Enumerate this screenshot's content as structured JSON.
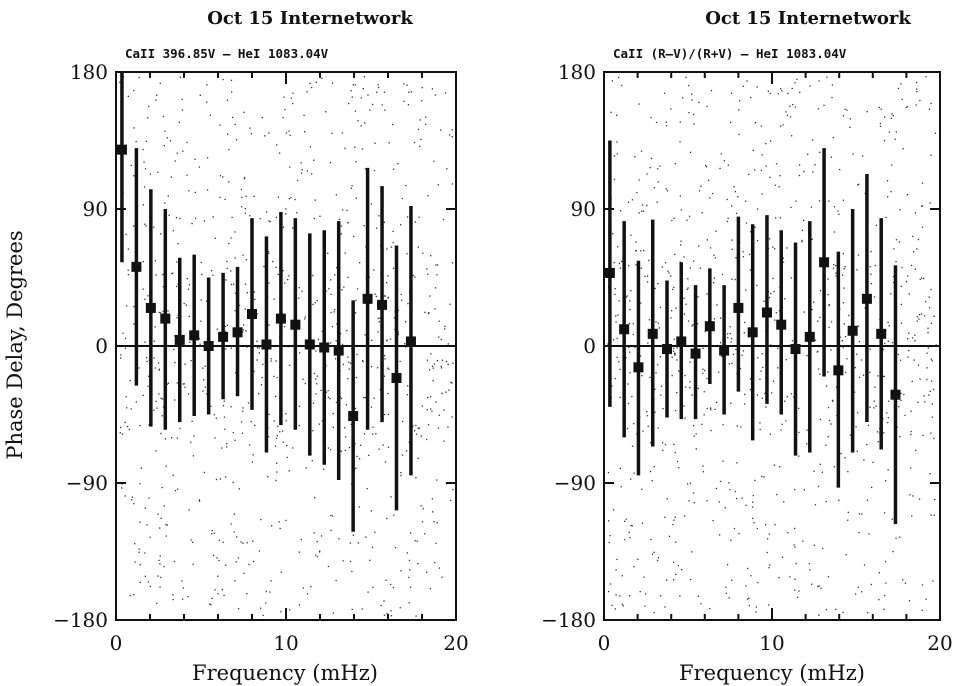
{
  "ylabel": "Phase Delay, Degrees",
  "colors": {
    "ink": "#111111",
    "scatter": "#333333",
    "background": "#ffffff"
  },
  "chart_data": [
    {
      "type": "scatter",
      "title": "Oct 15 Internetwork",
      "subtitle": "CaII 396.85V – HeI 1083.04V",
      "xlabel": "Frequency (mHz)",
      "ylabel": "Phase Delay, Degrees",
      "xlim": [
        0,
        20
      ],
      "ylim": [
        -180,
        180
      ],
      "xticks": [
        0,
        10,
        20
      ],
      "yticks": [
        180,
        90,
        0,
        -90,
        -180
      ],
      "xtick_labels": [
        "0",
        "10",
        "20"
      ],
      "ytick_labels": [
        "180",
        "90",
        "0",
        "−90",
        "−180"
      ],
      "zero_line": true,
      "points": [
        {
          "x": 0.35,
          "y": 129,
          "lo": 55,
          "hi": 180
        },
        {
          "x": 1.2,
          "y": 52,
          "lo": -26,
          "hi": 130
        },
        {
          "x": 2.05,
          "y": 25,
          "lo": -53,
          "hi": 103
        },
        {
          "x": 2.9,
          "y": 18,
          "lo": -55,
          "hi": 90
        },
        {
          "x": 3.75,
          "y": 4,
          "lo": -50,
          "hi": 58
        },
        {
          "x": 4.6,
          "y": 7,
          "lo": -46,
          "hi": 60
        },
        {
          "x": 5.45,
          "y": 0,
          "lo": -45,
          "hi": 45
        },
        {
          "x": 6.3,
          "y": 6,
          "lo": -35,
          "hi": 48
        },
        {
          "x": 7.15,
          "y": 9,
          "lo": -33,
          "hi": 52
        },
        {
          "x": 8.0,
          "y": 21,
          "lo": -42,
          "hi": 84
        },
        {
          "x": 8.85,
          "y": 1,
          "lo": -70,
          "hi": 72
        },
        {
          "x": 9.7,
          "y": 18,
          "lo": -52,
          "hi": 88
        },
        {
          "x": 10.55,
          "y": 14,
          "lo": -55,
          "hi": 84
        },
        {
          "x": 11.4,
          "y": 1,
          "lo": -72,
          "hi": 74
        },
        {
          "x": 12.25,
          "y": -1,
          "lo": -78,
          "hi": 76
        },
        {
          "x": 13.1,
          "y": -3,
          "lo": -88,
          "hi": 82
        },
        {
          "x": 13.95,
          "y": -46,
          "lo": -122,
          "hi": 30
        },
        {
          "x": 14.8,
          "y": 31,
          "lo": -55,
          "hi": 117
        },
        {
          "x": 15.65,
          "y": 27,
          "lo": -50,
          "hi": 105
        },
        {
          "x": 16.5,
          "y": -21,
          "lo": -108,
          "hi": 66
        },
        {
          "x": 17.35,
          "y": 3,
          "lo": -85,
          "hi": 92
        }
      ]
    },
    {
      "type": "scatter",
      "title": "Oct 15 Internetwork",
      "subtitle": "CaII (R–V)/(R+V) – HeI 1083.04V",
      "xlabel": "Frequency (mHz)",
      "ylabel": "",
      "xlim": [
        0,
        20
      ],
      "ylim": [
        -180,
        180
      ],
      "xticks": [
        0,
        10,
        20
      ],
      "yticks": [
        180,
        90,
        0,
        -90,
        -180
      ],
      "xtick_labels": [
        "0",
        "10",
        "20"
      ],
      "ytick_labels": [
        "180",
        "90",
        "0",
        "−90",
        "−180"
      ],
      "zero_line": true,
      "points": [
        {
          "x": 0.35,
          "y": 48,
          "lo": -40,
          "hi": 135
        },
        {
          "x": 1.2,
          "y": 11,
          "lo": -60,
          "hi": 82
        },
        {
          "x": 2.05,
          "y": -14,
          "lo": -85,
          "hi": 56
        },
        {
          "x": 2.9,
          "y": 8,
          "lo": -66,
          "hi": 83
        },
        {
          "x": 3.75,
          "y": -2,
          "lo": -47,
          "hi": 43
        },
        {
          "x": 4.6,
          "y": 3,
          "lo": -48,
          "hi": 55
        },
        {
          "x": 5.45,
          "y": -5,
          "lo": -48,
          "hi": 40
        },
        {
          "x": 6.3,
          "y": 13,
          "lo": -25,
          "hi": 51
        },
        {
          "x": 7.15,
          "y": -3,
          "lo": -45,
          "hi": 40
        },
        {
          "x": 8.0,
          "y": 25,
          "lo": -30,
          "hi": 85
        },
        {
          "x": 8.85,
          "y": 9,
          "lo": -62,
          "hi": 80
        },
        {
          "x": 9.7,
          "y": 22,
          "lo": -38,
          "hi": 86
        },
        {
          "x": 10.55,
          "y": 14,
          "lo": -45,
          "hi": 76
        },
        {
          "x": 11.4,
          "y": -2,
          "lo": -72,
          "hi": 68
        },
        {
          "x": 12.25,
          "y": 6,
          "lo": -70,
          "hi": 82
        },
        {
          "x": 13.1,
          "y": 55,
          "lo": -20,
          "hi": 130
        },
        {
          "x": 13.95,
          "y": -16,
          "lo": -93,
          "hi": 62
        },
        {
          "x": 14.8,
          "y": 10,
          "lo": -70,
          "hi": 90
        },
        {
          "x": 15.65,
          "y": 31,
          "lo": -50,
          "hi": 113
        },
        {
          "x": 16.5,
          "y": 8,
          "lo": -68,
          "hi": 84
        },
        {
          "x": 17.35,
          "y": -32,
          "lo": -117,
          "hi": 53
        }
      ]
    }
  ]
}
